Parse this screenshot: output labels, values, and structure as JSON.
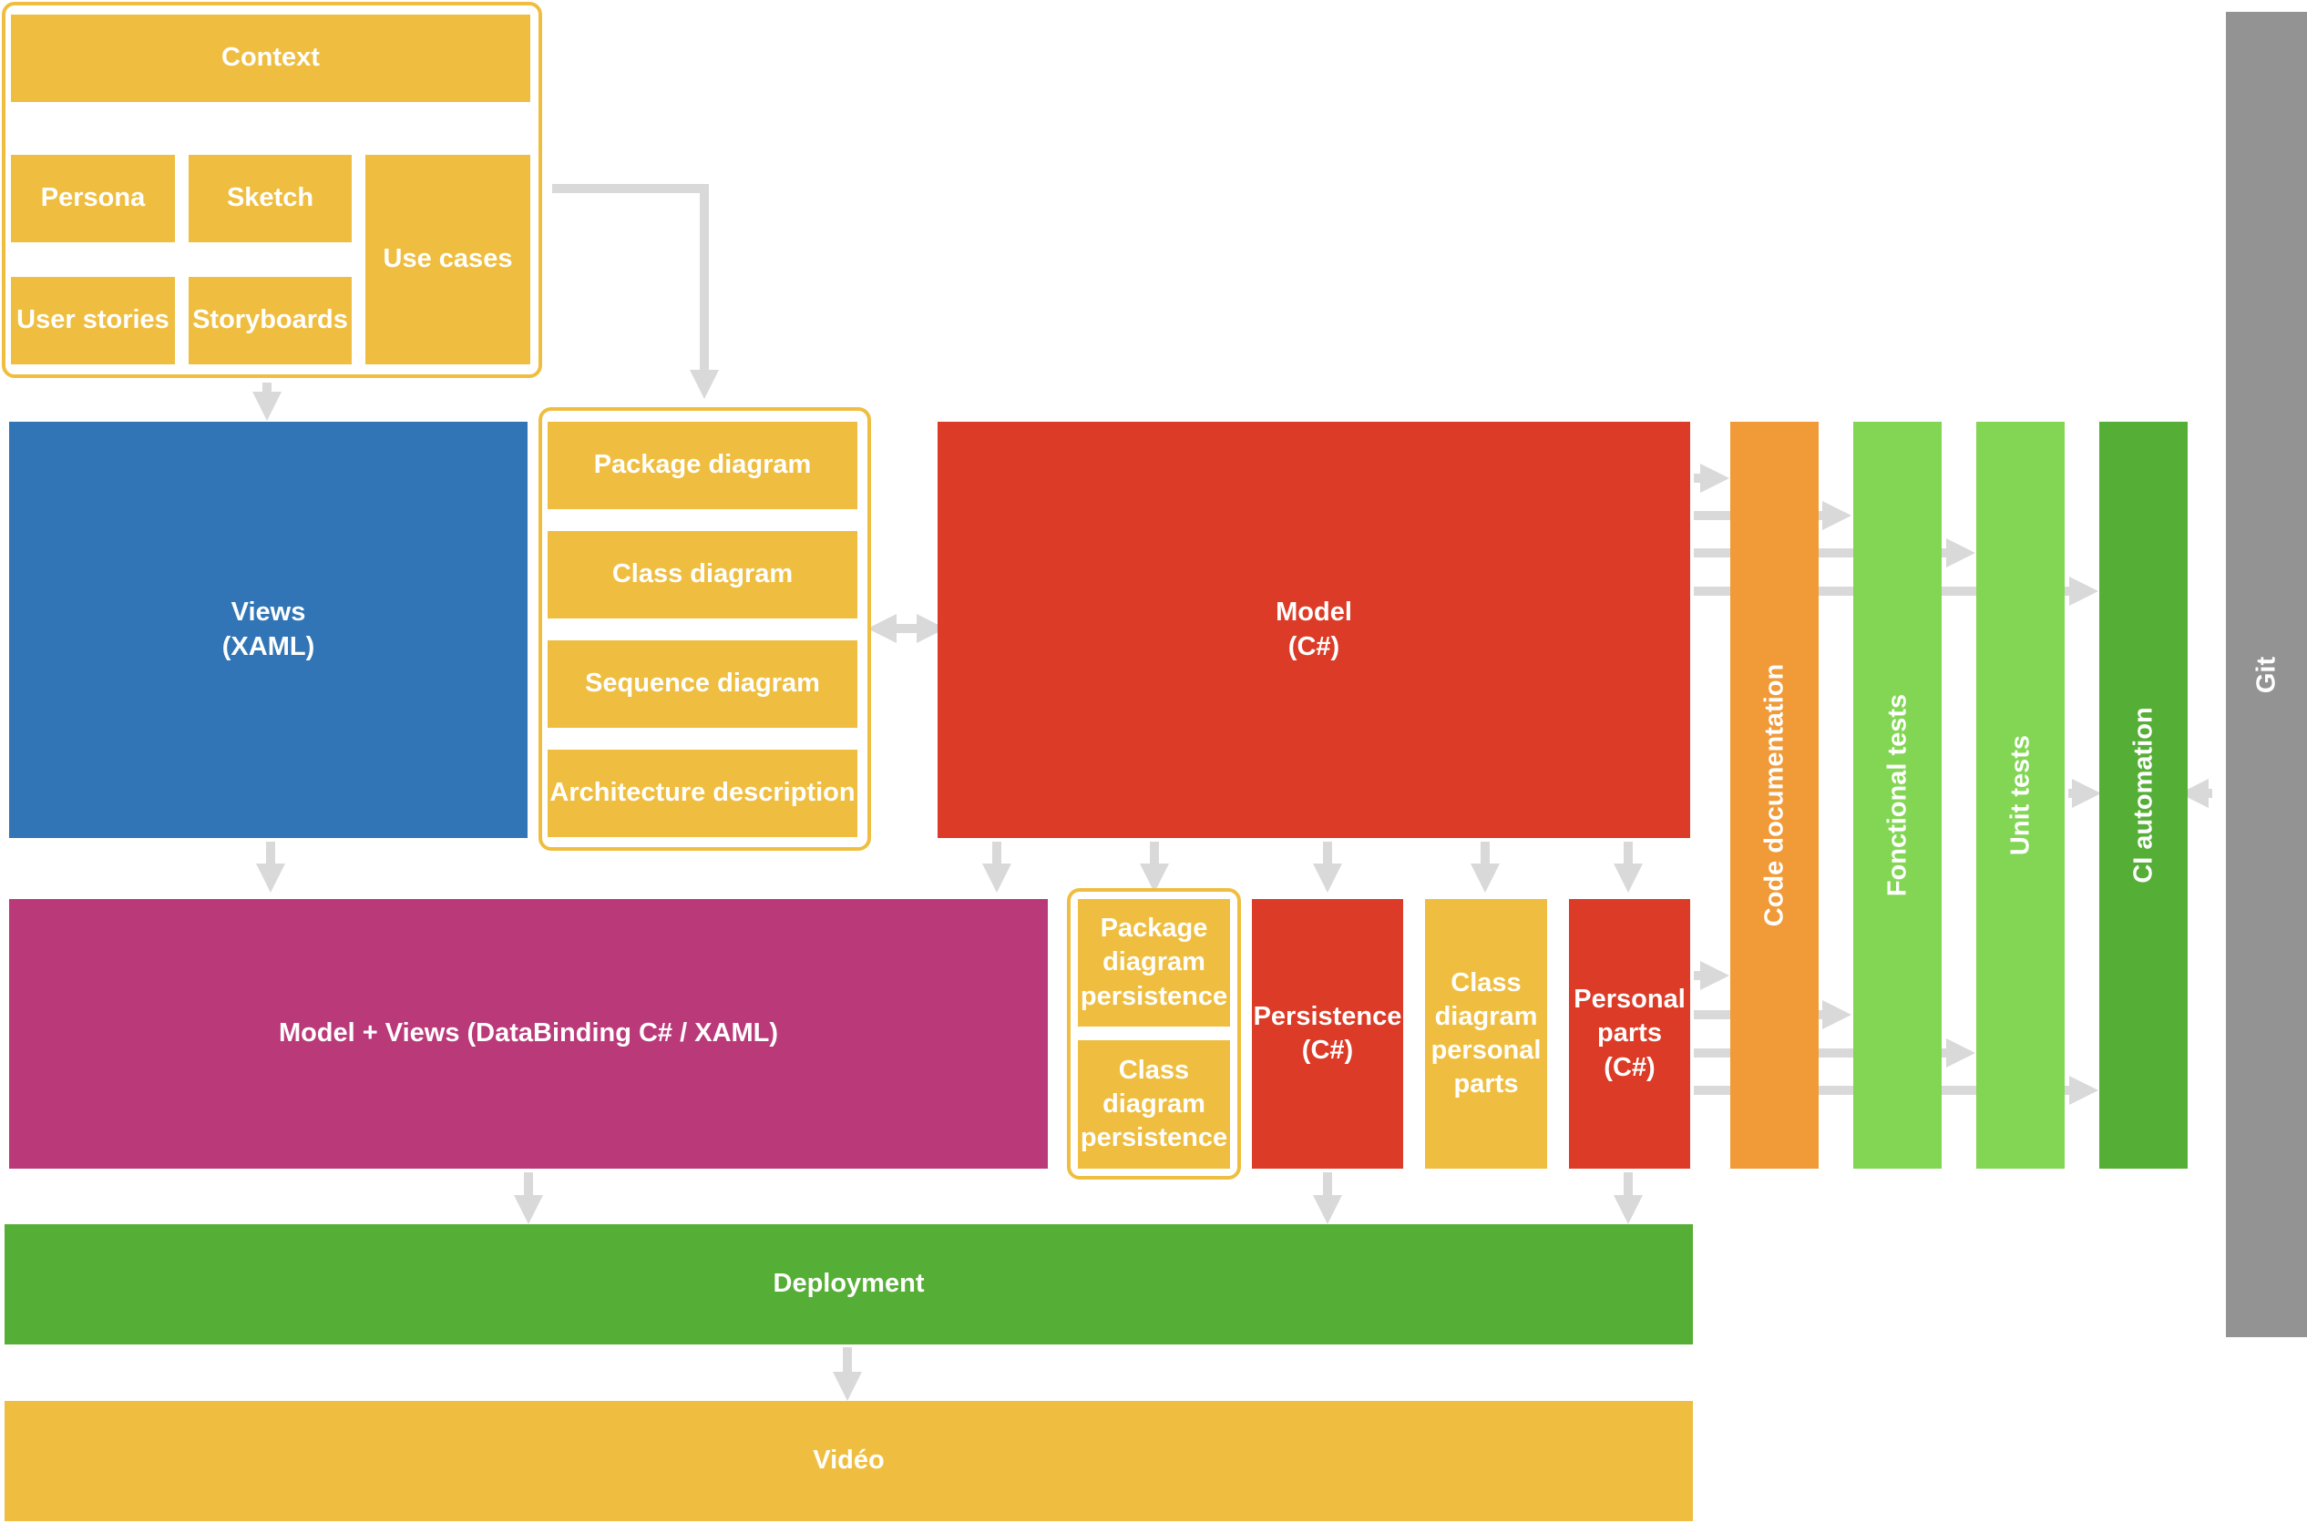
{
  "colors": {
    "yellow": "#EFBE40",
    "blue": "#3175B6",
    "red": "#DB3B27",
    "magenta": "#BA3979",
    "green": "#55AE35",
    "orange": "#F09A38",
    "light_green": "#82D654",
    "grey": "#939393",
    "arrow": "#D9D9D9"
  },
  "analysis": {
    "context": "Context",
    "persona": "Persona",
    "sketch": "Sketch",
    "use_cases": "Use cases",
    "user_stories": "User stories",
    "storyboards": "Storyboards"
  },
  "design": {
    "package_diagram": "Package diagram",
    "class_diagram": "Class diagram",
    "sequence_diagram": "Sequence diagram",
    "architecture_description": "Architecture description"
  },
  "views": "Views\n(XAML)",
  "model": "Model\n(C#)",
  "model_views": "Model + Views (DataBinding C# / XAML)",
  "persistence_design": {
    "package_diagram_persistence": "Package\ndiagram\npersistence",
    "class_diagram_persistence": "Class\ndiagram\npersistence"
  },
  "persistence": "Persistence\n(C#)",
  "class_diagram_personal_parts": "Class\ndiagram\npersonal\nparts",
  "personal_parts": "Personal\nparts\n(C#)",
  "quality": {
    "code_documentation": "Code documentation",
    "fonctional_tests": "Fonctional tests",
    "unit_tests": "Unit tests",
    "ci_automation": "CI automation"
  },
  "git": "Git",
  "deployment": "Deployment",
  "video": "Vidéo"
}
